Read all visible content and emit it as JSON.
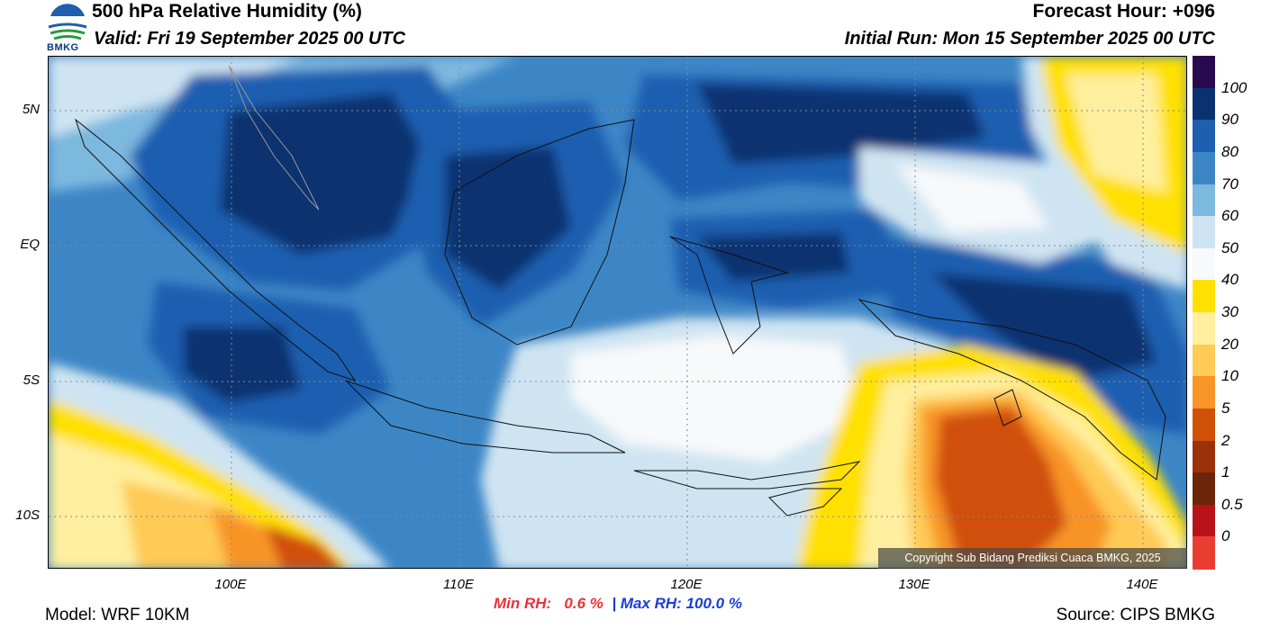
{
  "header": {
    "title": "500 hPa Relative Humidity (%)",
    "valid": "Valid: Fri 19 September 2025 00 UTC",
    "forecast_hour": "Forecast Hour: +096",
    "initial_run": "Initial Run: Mon 15 September 2025 00 UTC",
    "logo_text": "BMKG"
  },
  "axes": {
    "latitude_ticks": [
      "5N",
      "EQ",
      "5S",
      "10S"
    ],
    "longitude_ticks": [
      "100E",
      "110E",
      "120E",
      "130E",
      "140E"
    ]
  },
  "colorbar": {
    "labels": [
      "100",
      "90",
      "80",
      "70",
      "60",
      "50",
      "40",
      "30",
      "20",
      "10",
      "5",
      "2",
      "1",
      "0.5",
      "0"
    ],
    "colors": [
      "#2a0a4e",
      "#0b3270",
      "#1e5fb0",
      "#3d86c6",
      "#7db8df",
      "#cfe4f2",
      "#f7f9fb",
      "#ffe000",
      "#ffef9e",
      "#ffca55",
      "#f89428",
      "#d05008",
      "#9b3108",
      "#6b2508",
      "#b81319",
      "#ea3d32"
    ]
  },
  "stats": {
    "min_label": "Min RH:",
    "min_value": "0.6 %",
    "separator": "|",
    "max_label": "Max RH:",
    "max_value": "100.0 %"
  },
  "footer": {
    "model": "Model: WRF 10KM",
    "source": "Source: CIPS BMKG",
    "copyright": "Copyright Sub Bidang Prediksi Cuaca BMKG, 2025"
  }
}
